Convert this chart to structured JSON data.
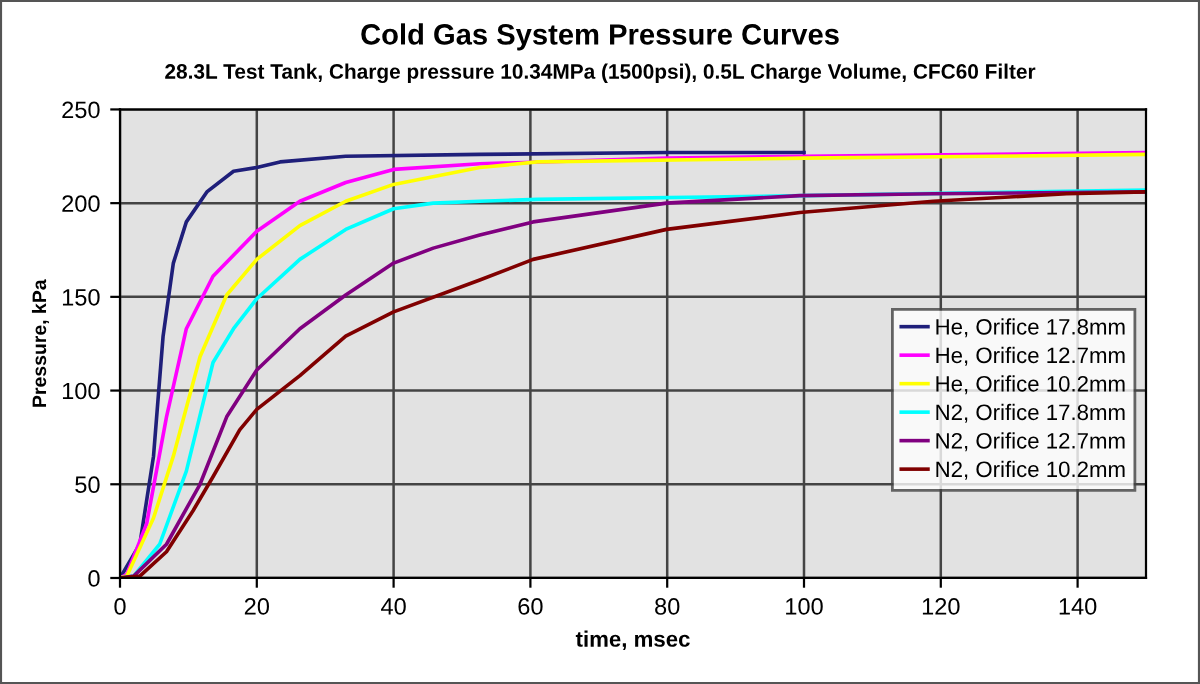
{
  "chart_data": {
    "type": "line",
    "title": "Cold Gas System Pressure Curves",
    "subtitle": "28.3L Test Tank, Charge pressure 10.34MPa (1500psi), 0.5L Charge Volume, CFC60 Filter",
    "xlabel": "time, msec",
    "ylabel": "Pressure, kPa",
    "xlim": [
      0,
      150
    ],
    "xticks": [
      0,
      20,
      40,
      60,
      80,
      100,
      120,
      140
    ],
    "ylim": [
      0,
      250
    ],
    "yticks": [
      0,
      50,
      100,
      150,
      200,
      250
    ],
    "grid": true,
    "legend": "right",
    "marker": "none",
    "line_style": "solid",
    "series": [
      {
        "name": "He, Orifice 17.8mm",
        "color": "#1f1f7a",
        "x": [
          0,
          2.9,
          4.9,
          6.3,
          7.8,
          9.7,
          12.7,
          16.6,
          20,
          23.4,
          33,
          52.6,
          80,
          100
        ],
        "values": [
          0,
          18,
          65,
          129,
          168,
          190,
          206,
          217,
          219,
          222,
          225,
          226,
          227,
          227
        ]
      },
      {
        "name": "He, Orifice 12.7mm",
        "color": "#ff00ff",
        "x": [
          0,
          1,
          3.9,
          6.8,
          9.7,
          13.6,
          20,
          26.3,
          33,
          40,
          52.6,
          80,
          100,
          150
        ],
        "values": [
          0,
          2,
          29,
          86,
          133,
          161,
          185,
          201,
          211,
          218,
          221,
          224,
          225,
          227
        ]
      },
      {
        "name": "He, Orifice 10.2mm",
        "color": "#ffff00",
        "x": [
          0,
          1,
          4.9,
          7.8,
          11.7,
          15.6,
          20,
          26.3,
          33,
          40,
          52.6,
          61,
          100,
          127,
          150
        ],
        "values": [
          0,
          1,
          32,
          65,
          118,
          151,
          170,
          188,
          201,
          210,
          219,
          222,
          224,
          225,
          226
        ]
      },
      {
        "name": "N2, Orifice 17.8mm",
        "color": "#00ffff",
        "x": [
          0,
          2,
          5.8,
          9.7,
          13.6,
          16.6,
          20,
          26.3,
          33,
          40,
          45.8,
          52.6,
          61,
          100,
          150
        ],
        "values": [
          0,
          1,
          18,
          57,
          115,
          133,
          149,
          170,
          186,
          197,
          200,
          201,
          202,
          204,
          207
        ]
      },
      {
        "name": "N2, Orifice 12.7mm",
        "color": "#800080",
        "x": [
          0,
          2,
          6.8,
          11.7,
          15.6,
          20,
          26.3,
          33,
          40,
          45.8,
          52.6,
          60.4,
          79.9,
          99.4,
          118.9,
          150
        ],
        "values": [
          0,
          1,
          18,
          50,
          86,
          111,
          133,
          151,
          168,
          176,
          183,
          190,
          200,
          204,
          205,
          206
        ]
      },
      {
        "name": "N2, Orifice 10.2mm",
        "color": "#800000",
        "x": [
          0,
          2.9,
          6.8,
          10.7,
          13.6,
          17.5,
          20,
          26.3,
          33,
          40,
          52.6,
          60.4,
          79.9,
          99.4,
          118.9,
          138.4,
          150
        ],
        "values": [
          0,
          1,
          14,
          36,
          54,
          79,
          90,
          108,
          129,
          142,
          159,
          170,
          186,
          195,
          201,
          205,
          206
        ]
      }
    ]
  }
}
